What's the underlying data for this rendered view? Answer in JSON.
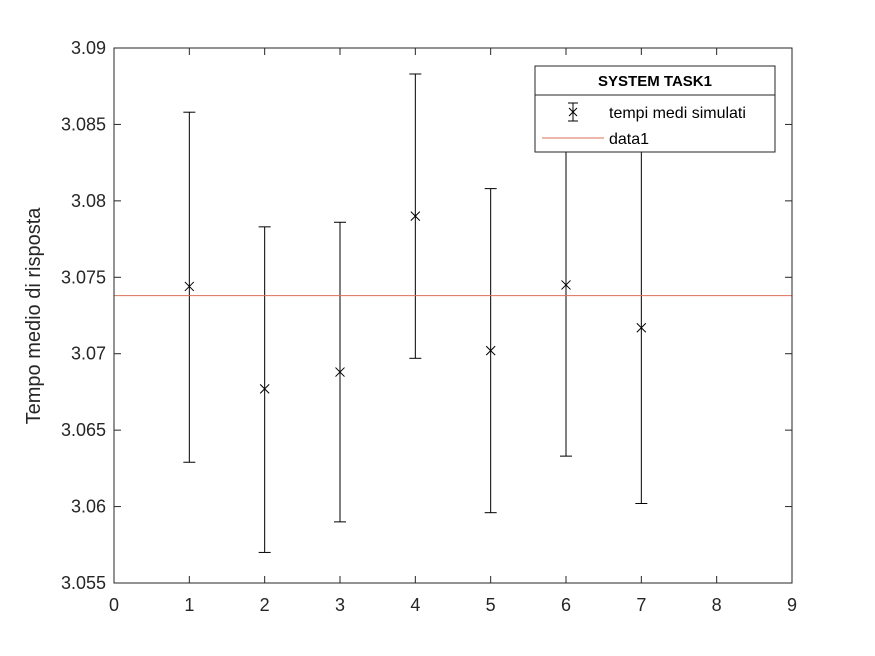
{
  "chart_data": {
    "type": "scatter",
    "title": "",
    "xlabel": "",
    "ylabel": "Tempo medio di risposta",
    "xlim": [
      0,
      9
    ],
    "ylim": [
      3.055,
      3.09
    ],
    "xticks": [
      "0",
      "1",
      "2",
      "3",
      "4",
      "5",
      "6",
      "7",
      "8",
      "9"
    ],
    "yticks": [
      "3.055",
      "3.06",
      "3.065",
      "3.07",
      "3.075",
      "3.08",
      "3.085",
      "3.09"
    ],
    "grid": false,
    "legend_placement": "top-right",
    "legend_title": "SYSTEM TASK1",
    "series": [
      {
        "name": "tempi medi simulati",
        "kind": "errorbar",
        "color": "#000000",
        "marker": "x",
        "x": [
          1,
          2,
          3,
          4,
          5,
          6,
          7
        ],
        "y": [
          3.0744,
          3.0677,
          3.0688,
          3.079,
          3.0702,
          3.0745,
          3.0717
        ],
        "lower": [
          3.0629,
          3.057,
          3.059,
          3.0697,
          3.0596,
          3.0633,
          3.0602
        ],
        "upper": [
          3.0858,
          3.0783,
          3.0786,
          3.0883,
          3.0808,
          3.0858,
          3.0832
        ]
      },
      {
        "name": "data1",
        "kind": "hline",
        "color": "#d9705a",
        "y": 3.0738
      }
    ]
  }
}
